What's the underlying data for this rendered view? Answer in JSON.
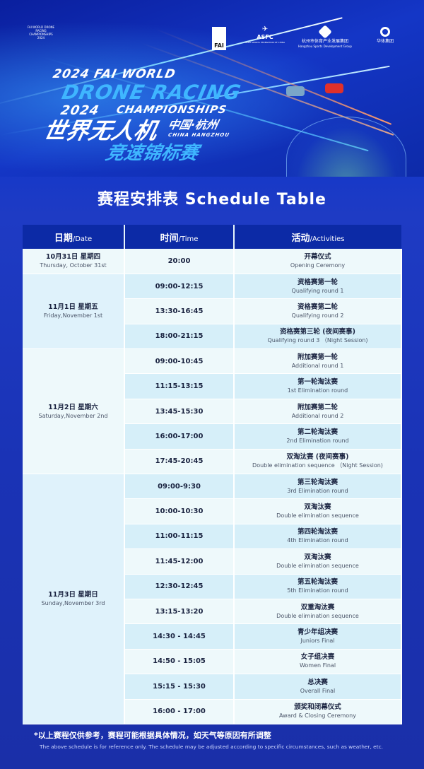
{
  "banner": {
    "event_logo_text": "FAI WORLD DRONE RACING CHAMPIONSHIPS 2024",
    "partners": [
      {
        "name": "FAI",
        "icon": "fai-eagle-logo"
      },
      {
        "name": "ASFC",
        "sub": "AERO SPORTS FEDERATION OF CHINA",
        "icon": "asfc-wings-logo"
      },
      {
        "name": "杭州市体育产业发展集团",
        "sub": "Hangzhou Sports Development Group",
        "icon": "hangzhou-sports-logo"
      },
      {
        "name": "华体集团",
        "icon": "huati-group-logo"
      }
    ],
    "title_en_1": "2024 FAI WORLD",
    "title_en_2": "DRONE RACING",
    "title_en_3": "CHAMPIONSHIPS",
    "title_year": "2024",
    "title_zh_1": "世界无人机",
    "title_city_zh": "中国·杭州",
    "title_city_en": "CHINA HANGZHOU",
    "title_zh_2": "竞速锦标赛"
  },
  "schedule_title": "赛程安排表 Schedule Table",
  "table": {
    "headers": [
      {
        "zh": "日期",
        "en": "/Date"
      },
      {
        "zh": "时间",
        "en": "/Time"
      },
      {
        "zh": "活动",
        "en": "/Activities"
      }
    ],
    "days": [
      {
        "date_zh": "10月31日 星期四",
        "date_en": "Thursday, October 31st",
        "events": [
          {
            "time": "20:00",
            "zh": "开幕仪式",
            "en": "Opening Ceremony"
          }
        ]
      },
      {
        "date_zh": "11月1日 星期五",
        "date_en": "Friday,November 1st",
        "events": [
          {
            "time": "09:00-12:15",
            "zh": "资格赛第一轮",
            "en": "Qualifying round 1"
          },
          {
            "time": "13:30-16:45",
            "zh": "资格赛第二轮",
            "en": "Qualifying round 2"
          },
          {
            "time": "18:00-21:15",
            "zh": "资格赛第三轮 (夜间赛事)",
            "en": "Qualifying round 3 （Night Session)"
          }
        ]
      },
      {
        "date_zh": "11月2日 星期六",
        "date_en": "Saturday,November 2nd",
        "events": [
          {
            "time": "09:00-10:45",
            "zh": "附加赛第一轮",
            "en": "Additional round 1"
          },
          {
            "time": "11:15-13:15",
            "zh": "第一轮淘汰赛",
            "en": "1st Elimination round"
          },
          {
            "time": "13:45-15:30",
            "zh": "附加赛第二轮",
            "en": "Additional round 2"
          },
          {
            "time": "16:00-17:00",
            "zh": "第二轮淘汰赛",
            "en": "2nd Elimination round"
          },
          {
            "time": "17:45-20:45",
            "zh": "双淘汰赛 (夜间赛事)",
            "en": "Double elimination sequence （Night Session)"
          }
        ]
      },
      {
        "date_zh": "11月3日 星期日",
        "date_en": "Sunday,November 3rd",
        "events": [
          {
            "time": "09:00-9:30",
            "zh": "第三轮淘汰赛",
            "en": "3rd Elimination round"
          },
          {
            "time": "10:00-10:30",
            "zh": "双淘汰赛",
            "en": "Double elimination sequence"
          },
          {
            "time": "11:00-11:15",
            "zh": "第四轮淘汰赛",
            "en": "4th Elimination round"
          },
          {
            "time": "11:45-12:00",
            "zh": "双淘汰赛",
            "en": "Double elimination sequence"
          },
          {
            "time": "12:30-12:45",
            "zh": "第五轮淘汰赛",
            "en": "5th Elimination round"
          },
          {
            "time": "13:15-13:20",
            "zh": "双重淘汰赛",
            "en": "Double elimination sequence"
          },
          {
            "time": "14:30 - 14:45",
            "zh": "青少年组决赛",
            "en": "Juniors Final"
          },
          {
            "time": "14:50 - 15:05",
            "zh": "女子组决赛",
            "en": "Women Final"
          },
          {
            "time": "15:15 - 15:30",
            "zh": "总决赛",
            "en": "Overall Final"
          },
          {
            "time": "16:00 - 17:00",
            "zh": "颁奖和闭幕仪式",
            "en": "Award & Closing Ceremony"
          }
        ]
      }
    ]
  },
  "footnote_zh": "*以上赛程仅供参考，赛程可能根据具体情况，如天气等原因有所调整",
  "footnote_en": "The above schedule is for reference only. The schedule may be adjusted according to specific circumstances, such as weather, etc.",
  "colors": {
    "header_bg": "#0c2aa6",
    "row_light": "#eef9fb",
    "row_blue": "#d6eff9",
    "page_bg": "#1a33b6"
  }
}
